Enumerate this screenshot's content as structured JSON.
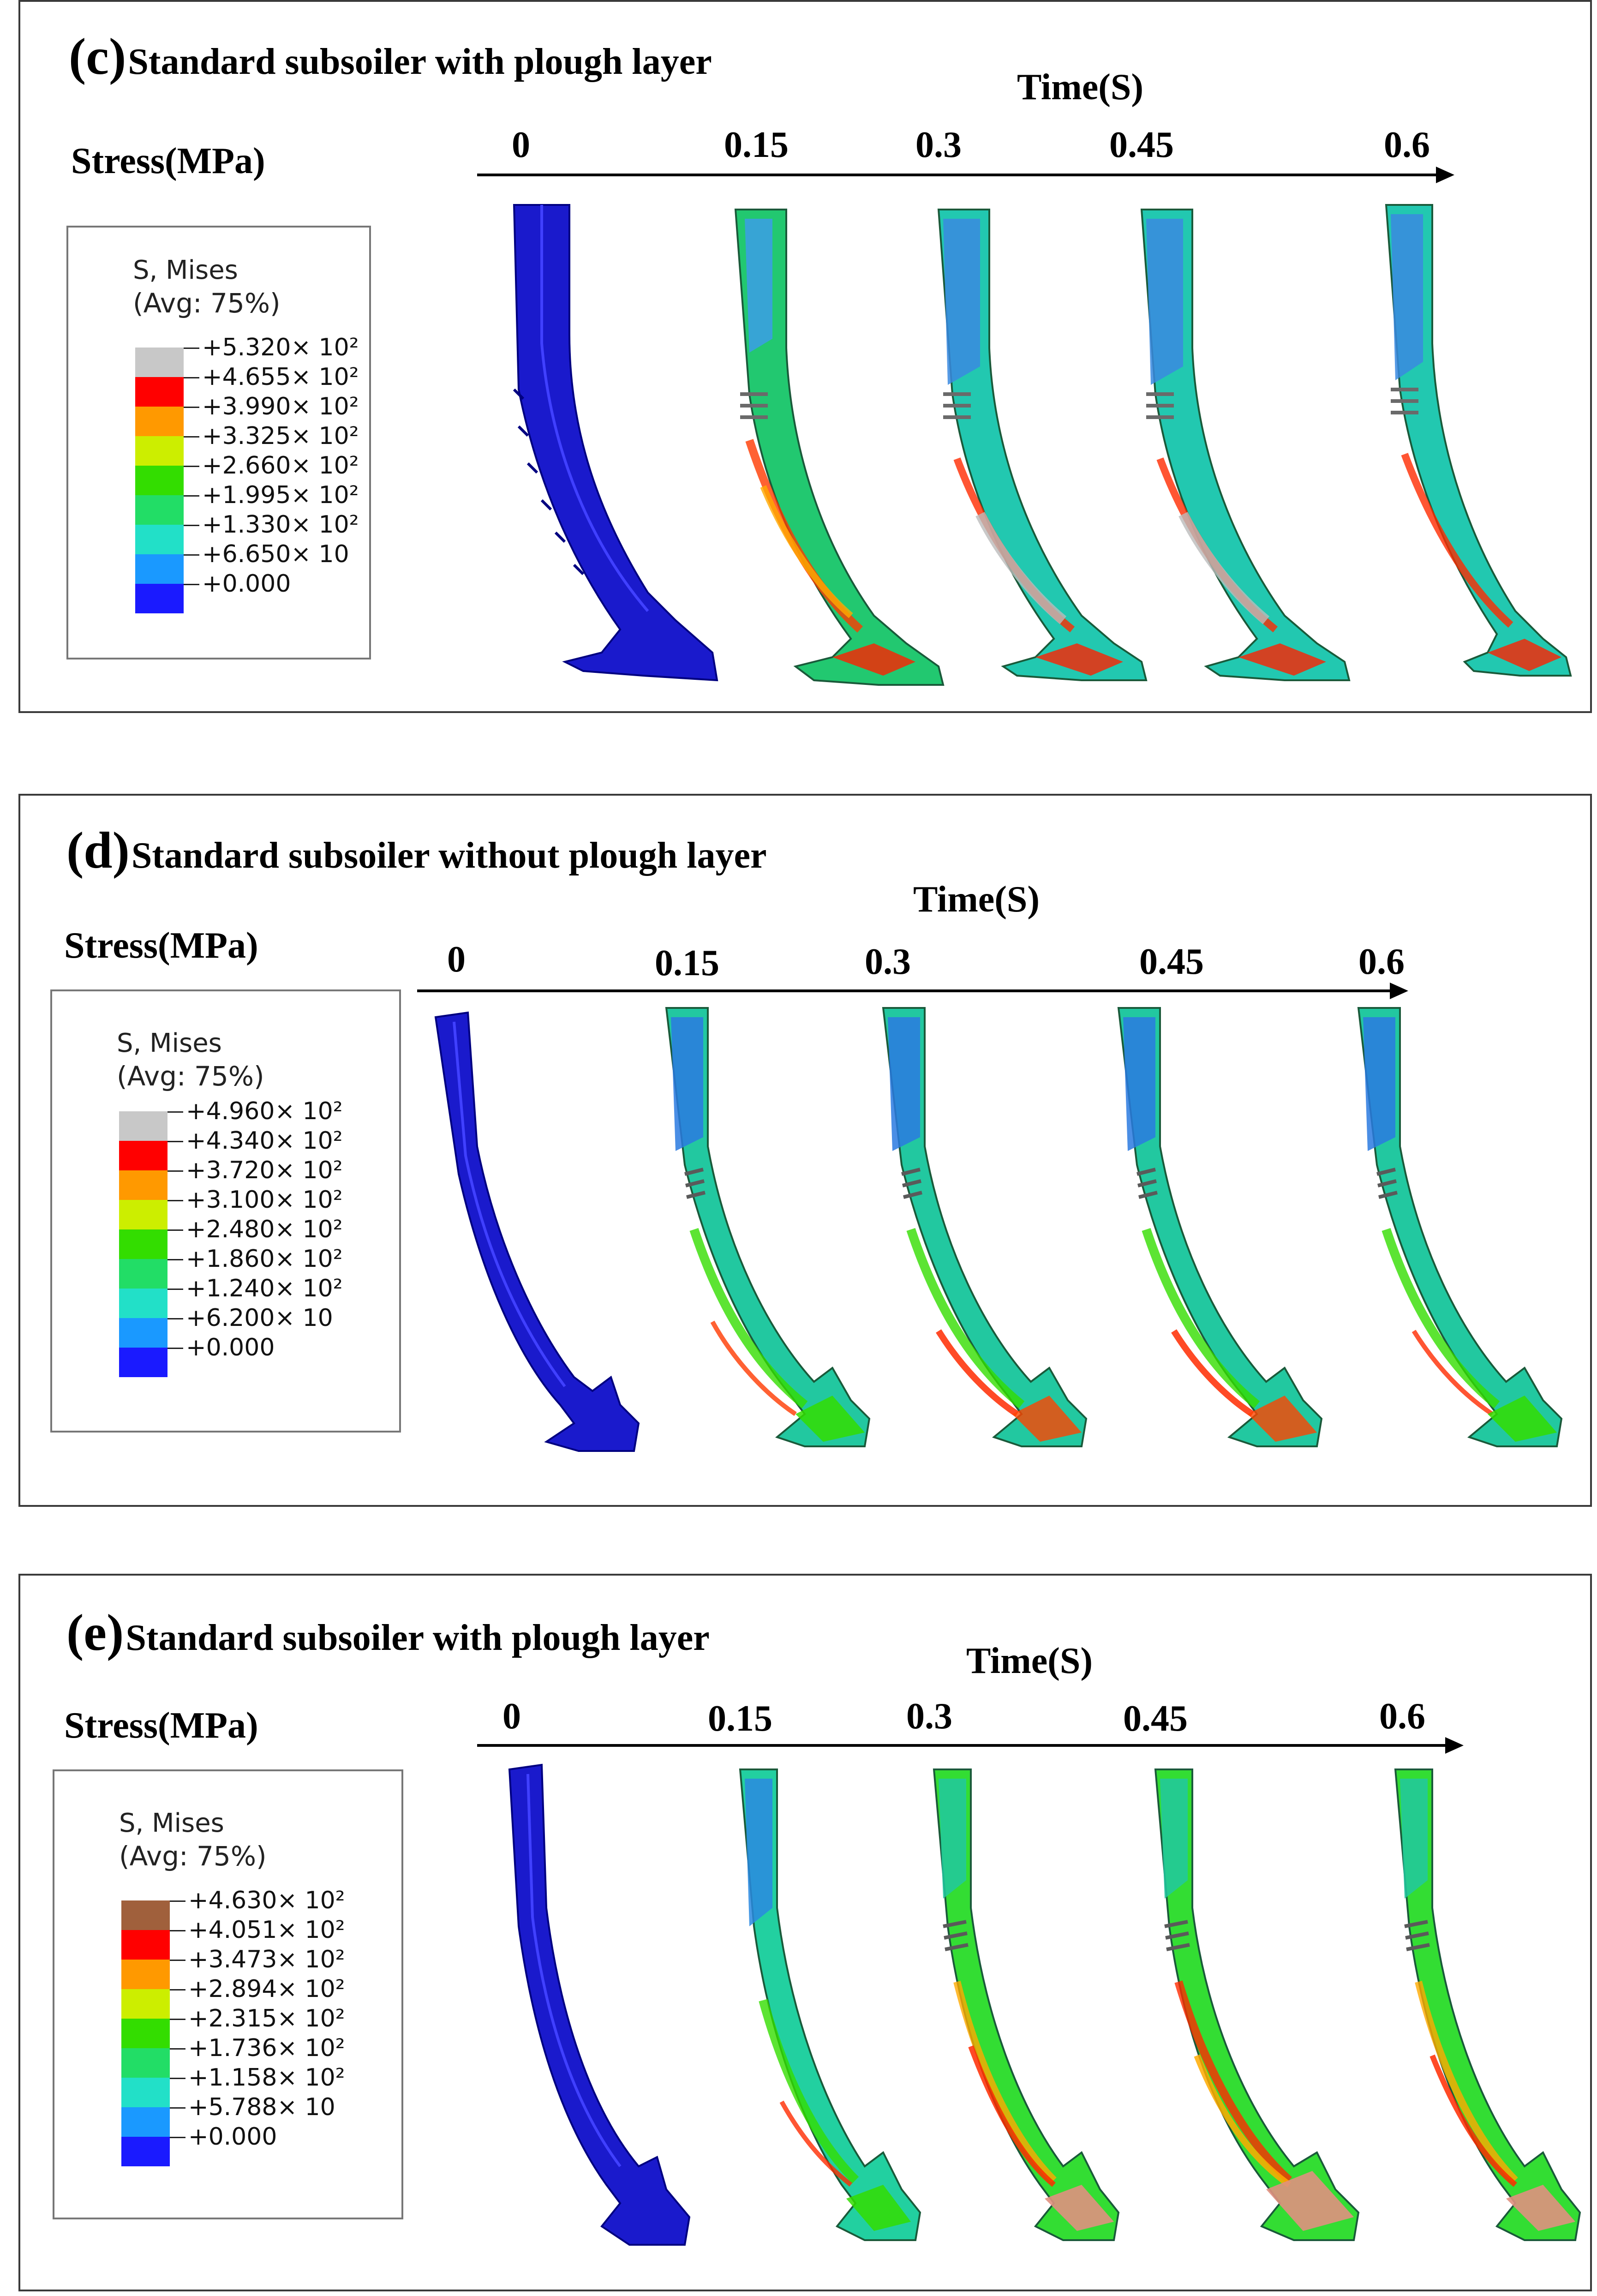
{
  "panels": [
    {
      "letter": "(c)",
      "title": "Standard subsoiler with plough layer",
      "time_label": "Time(S)",
      "stress_label": "Stress(MPa)",
      "ticks": [
        "0",
        "0.15",
        "0.3",
        "0.45",
        "0.6"
      ],
      "legend": {
        "title": "S, Mises",
        "avg": "(Avg: 75%)",
        "values": [
          "+5.320",
          "+4.655",
          "+3.990",
          "+3.325",
          "+2.660",
          "+1.995",
          "+1.330",
          "+6.650",
          "+0.000"
        ],
        "exps": [
          "× 10²",
          "× 10²",
          "× 10²",
          "× 10²",
          "× 10²",
          "× 10²",
          "× 10²",
          "× 10",
          ""
        ],
        "colors": [
          "#c8c8c8",
          "#ff0000",
          "#ff9900",
          "#ccee00",
          "#33dd00",
          "#22dd66",
          "#22e0c8",
          "#1a99ff",
          "#1a1aff"
        ]
      }
    },
    {
      "letter": "(d)",
      "title": "Standard subsoiler without plough layer",
      "time_label": "Time(S)",
      "stress_label": "Stress(MPa)",
      "ticks": [
        "0",
        "0.15",
        "0.3",
        "0.45",
        "0.6"
      ],
      "legend": {
        "title": "S, Mises",
        "avg": "(Avg: 75%)",
        "values": [
          "+4.960",
          "+4.340",
          "+3.720",
          "+3.100",
          "+2.480",
          "+1.860",
          "+1.240",
          "+6.200",
          "+0.000"
        ],
        "exps": [
          "× 10²",
          "× 10²",
          "× 10²",
          "× 10²",
          "× 10²",
          "× 10²",
          "× 10²",
          "× 10",
          ""
        ],
        "colors": [
          "#c8c8c8",
          "#ff0000",
          "#ff9900",
          "#ccee00",
          "#33dd00",
          "#22dd66",
          "#22e0c8",
          "#1a99ff",
          "#1a1aff"
        ]
      }
    },
    {
      "letter": "(e)",
      "title": "Standard subsoiler with plough layer",
      "time_label": "Time(S)",
      "stress_label": "Stress(MPa)",
      "ticks": [
        "0",
        "0.15",
        "0.3",
        "0.45",
        "0.6"
      ],
      "legend": {
        "title": "S, Mises",
        "avg": "(Avg: 75%)",
        "values": [
          "+4.630",
          "+4.051",
          "+3.473",
          "+2.894",
          "+2.315",
          "+1.736",
          "+1.158",
          "+5.788",
          "+0.000"
        ],
        "exps": [
          "× 10²",
          "× 10²",
          "× 10²",
          "× 10²",
          "× 10²",
          "× 10²",
          "× 10²",
          "× 10",
          ""
        ],
        "colors": [
          "#a0603c",
          "#ff0000",
          "#ff9900",
          "#ccee00",
          "#33dd00",
          "#22dd66",
          "#22e0c8",
          "#1a99ff",
          "#1a1aff"
        ]
      }
    }
  ]
}
